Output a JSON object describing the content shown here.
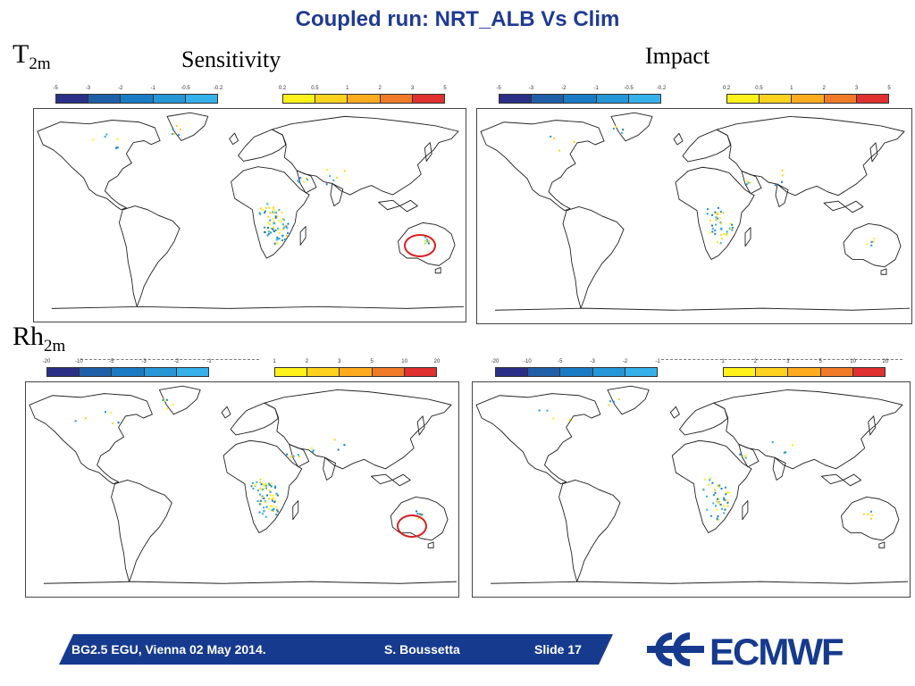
{
  "slide": {
    "title": "Coupled run: NRT_ALB Vs Clim",
    "row1_label": {
      "main": "T",
      "sub": "2m"
    },
    "row2_label": {
      "main": "Rh",
      "sub": "2m"
    },
    "col_sensitivity": "Sensitivity",
    "col_impact": "Impact"
  },
  "colorbars": {
    "t2m_neg_ticks": [
      "-5",
      "-3",
      "-2",
      "-1",
      "-0.5",
      "-0.2"
    ],
    "t2m_pos_ticks": [
      "0.2",
      "0.5",
      "1",
      "2",
      "3",
      "5"
    ],
    "rh2m_neg_ticks": [
      "-20",
      "-10",
      "-5",
      "-3",
      "-2",
      "-1"
    ],
    "rh2m_pos_ticks": [
      "1",
      "2",
      "3",
      "5",
      "10",
      "20"
    ],
    "neg_colors": [
      "#2b2f86",
      "#1f5fa8",
      "#1a7bc4",
      "#2596d6",
      "#35b0ea"
    ],
    "pos_colors": [
      "#fff21a",
      "#ffd21f",
      "#ffab1f",
      "#f07a28",
      "#e03030"
    ]
  },
  "footer": {
    "event": "BG2.5  EGU, Vienna 02 May 2014.",
    "author": "S. Boussetta",
    "slide": "Slide 17",
    "band_color": "#163a8e",
    "logo_text": "ECMWF",
    "logo_color": "#163a8e"
  },
  "annotation": {
    "ring_color": "#d91e1e"
  }
}
